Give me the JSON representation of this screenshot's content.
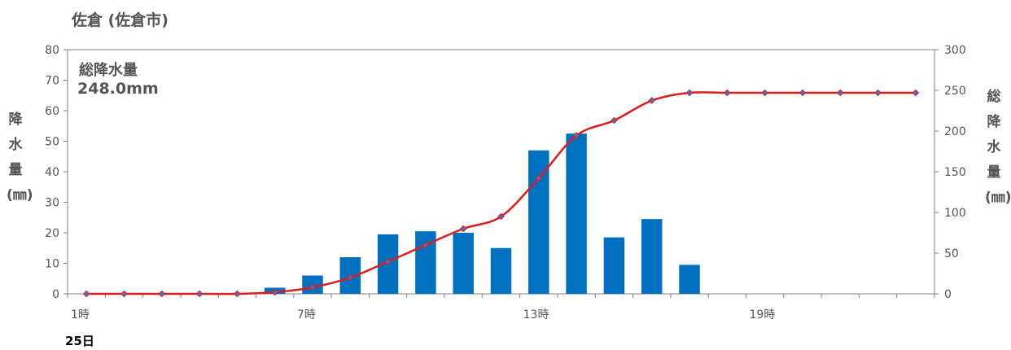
{
  "title": "佐倉 (佐倉市)",
  "date_label": "25日",
  "total_label": "総降水量",
  "total_value": "248.0mm",
  "chart_data": {
    "type": "bar+line",
    "x": [
      1,
      2,
      3,
      4,
      5,
      6,
      7,
      8,
      9,
      10,
      11,
      12,
      13,
      14,
      15,
      16,
      17,
      18,
      19,
      20,
      21,
      22,
      23
    ],
    "x_tick_labels": [
      {
        "x": 1,
        "label": "1時"
      },
      {
        "x": 7,
        "label": "7時"
      },
      {
        "x": 13,
        "label": "13時"
      },
      {
        "x": 19,
        "label": "19時"
      }
    ],
    "series": [
      {
        "kind": "bar",
        "axis": "left",
        "color": "#0070c0",
        "values": [
          0,
          0,
          0,
          0,
          0,
          2,
          6,
          12,
          19.5,
          20.5,
          20,
          15,
          47,
          52.5,
          18.5,
          24.5,
          9.5,
          0,
          0,
          0,
          0,
          0,
          0
        ]
      },
      {
        "kind": "line",
        "axis": "right",
        "color": "#e01b1b",
        "marker_color": "#4472c4",
        "values": [
          0,
          0,
          0,
          0,
          0,
          2,
          8,
          20,
          39.5,
          60,
          80,
          95,
          142,
          194.5,
          213,
          237.5,
          247,
          247,
          247,
          247,
          247,
          247,
          247
        ]
      }
    ],
    "ylabel_left": "降水量(㎜)",
    "ylabel_right": "総降水量(㎜)",
    "ylim_left": [
      0,
      80
    ],
    "yticks_left": [
      0,
      10,
      20,
      30,
      40,
      50,
      60,
      70,
      80
    ],
    "ylim_right": [
      0,
      300
    ],
    "yticks_right": [
      0,
      50,
      100,
      150,
      200,
      250,
      300
    ],
    "grid": false
  }
}
